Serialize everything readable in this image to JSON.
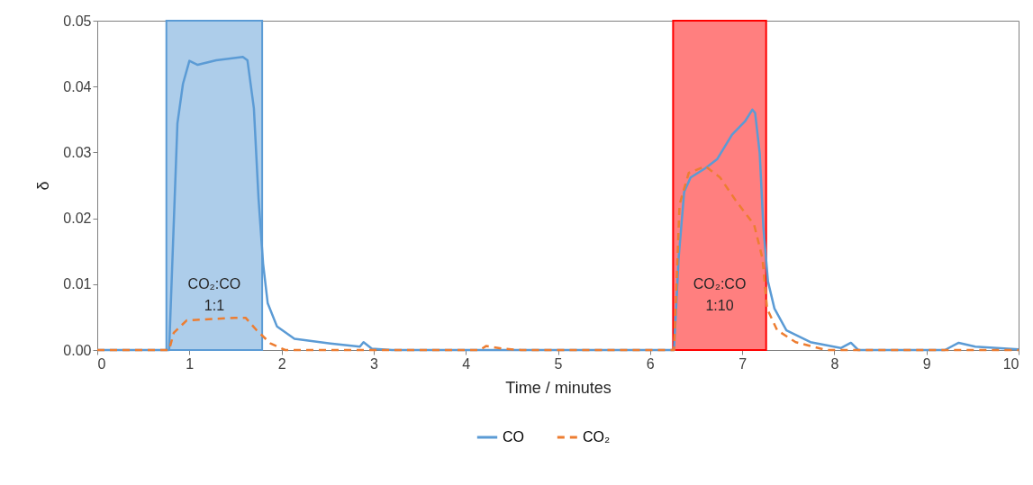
{
  "chart_data": {
    "type": "line",
    "xlabel": "Time / minutes",
    "ylabel": "δ",
    "xlim": [
      0,
      10
    ],
    "xticks": [
      0,
      1,
      2,
      3,
      4,
      5,
      6,
      7,
      8,
      9,
      10
    ],
    "ylim": [
      0,
      0.05
    ],
    "yticks": [
      {
        "value": 0,
        "label": "0.00"
      },
      {
        "value": 0.01,
        "label": "0.01"
      },
      {
        "value": 0.02,
        "label": "0.02"
      },
      {
        "value": 0.03,
        "label": "0.03"
      },
      {
        "value": 0.04,
        "label": "0.04"
      },
      {
        "value": 0.05,
        "label": "0.05"
      }
    ],
    "grid": false,
    "legend": "bottom",
    "marker": "none",
    "series": [
      {
        "name": "CO",
        "color": "#5b9bd5",
        "line_style": "solid",
        "x": [
          0,
          0.78,
          0.87,
          0.93,
          1.0,
          1.09,
          1.29,
          1.58,
          1.63,
          1.7,
          1.75,
          1.8,
          1.85,
          1.95,
          2.14,
          2.53,
          2.85,
          2.89,
          2.98,
          3.2,
          6.26,
          6.31,
          6.37,
          6.44,
          6.6,
          6.73,
          6.89,
          7.03,
          7.11,
          7.14,
          7.19,
          7.23,
          7.28,
          7.35,
          7.48,
          7.74,
          8.07,
          8.18,
          8.26,
          9.2,
          9.35,
          9.53,
          10
        ],
        "values": [
          0,
          0,
          0.0344,
          0.0404,
          0.0439,
          0.0433,
          0.044,
          0.0445,
          0.044,
          0.0367,
          0.0231,
          0.0131,
          0.0071,
          0.0036,
          0.0017,
          0.001,
          0.0005,
          0.0012,
          0.0002,
          0,
          0,
          0.0139,
          0.024,
          0.0262,
          0.0276,
          0.029,
          0.0327,
          0.0347,
          0.0365,
          0.036,
          0.0299,
          0.0186,
          0.0104,
          0.0063,
          0.003,
          0.0012,
          0.0003,
          0.0011,
          0,
          0,
          0.0011,
          0.0005,
          0.0001
        ]
      },
      {
        "name": "CO₂",
        "color": "#ed7d31",
        "line_style": "dashed",
        "x": [
          0,
          0.78,
          0.83,
          0.97,
          1.49,
          1.61,
          1.73,
          1.88,
          2.04,
          4.15,
          4.22,
          4.4,
          4.6,
          6.26,
          6.32,
          6.42,
          6.6,
          6.76,
          6.93,
          7.13,
          7.22,
          7.27,
          7.38,
          7.58,
          7.91,
          10
        ],
        "values": [
          0,
          0,
          0.0026,
          0.0045,
          0.0049,
          0.0049,
          0.003,
          0.001,
          0,
          0,
          0.0006,
          0.0002,
          0,
          0,
          0.0221,
          0.0269,
          0.0279,
          0.0262,
          0.0227,
          0.019,
          0.0139,
          0.0063,
          0.003,
          0.0012,
          0,
          0
        ]
      }
    ],
    "bands": [
      {
        "axis": "x",
        "from": 0.75,
        "to": 1.79,
        "label": "CO₂:CO 1:1",
        "color": "#5b9bd5"
      },
      {
        "axis": "x",
        "from": 6.25,
        "to": 7.26,
        "label": "CO₂:CO 1:10",
        "color": "#ff0000"
      }
    ]
  }
}
